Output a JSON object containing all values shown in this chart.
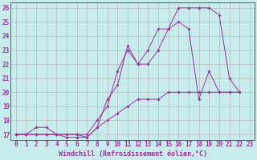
{
  "xlabel": "Windchill (Refroidissement éolien,°C)",
  "bg_color": "#c8ecec",
  "line_color": "#993399",
  "grid_color": "#b0b0b0",
  "xlim_min": -0.5,
  "xlim_max": 23.5,
  "ylim_min": 16.6,
  "ylim_max": 26.4,
  "yticks": [
    17,
    18,
    19,
    20,
    21,
    22,
    23,
    24,
    25,
    26
  ],
  "xticks": [
    0,
    1,
    2,
    3,
    4,
    5,
    6,
    7,
    8,
    9,
    10,
    11,
    12,
    13,
    14,
    15,
    16,
    17,
    18,
    19,
    20,
    21,
    22,
    23
  ],
  "series1_x": [
    0,
    1,
    2,
    3,
    4,
    5,
    6,
    7,
    8,
    9,
    10,
    11,
    12,
    13,
    14,
    15,
    16,
    17,
    18,
    19,
    20,
    21,
    22
  ],
  "series1_y": [
    17,
    17,
    17,
    17,
    17,
    17,
    17,
    16.8,
    17.5,
    18,
    18.5,
    19,
    19.5,
    19.5,
    19.5,
    20,
    20,
    20,
    20,
    20,
    20,
    20,
    20
  ],
  "series2_x": [
    0,
    1,
    2,
    3,
    4,
    5,
    6,
    7,
    8,
    9,
    10,
    11,
    12,
    13,
    14,
    15,
    16,
    17,
    18,
    19,
    20,
    21,
    22
  ],
  "series2_y": [
    17,
    17,
    17.5,
    17.5,
    17,
    16.8,
    16.8,
    16.8,
    17.5,
    19.5,
    20.5,
    23.3,
    22,
    22,
    23,
    24.5,
    25,
    24.5,
    19.5,
    21.5,
    20,
    20,
    20
  ],
  "series3_x": [
    0,
    1,
    2,
    3,
    4,
    5,
    6,
    7,
    8,
    9,
    10,
    11,
    12,
    13,
    14,
    15,
    16,
    17,
    18,
    19,
    20,
    21,
    22
  ],
  "series3_y": [
    17,
    17,
    17,
    17,
    17,
    17,
    17,
    17,
    18,
    19,
    21.5,
    23,
    22,
    23,
    24.5,
    24.5,
    26,
    26,
    26,
    26,
    25.5,
    21,
    20
  ],
  "xlabel_fontsize": 6,
  "tick_fontsize": 5.5
}
